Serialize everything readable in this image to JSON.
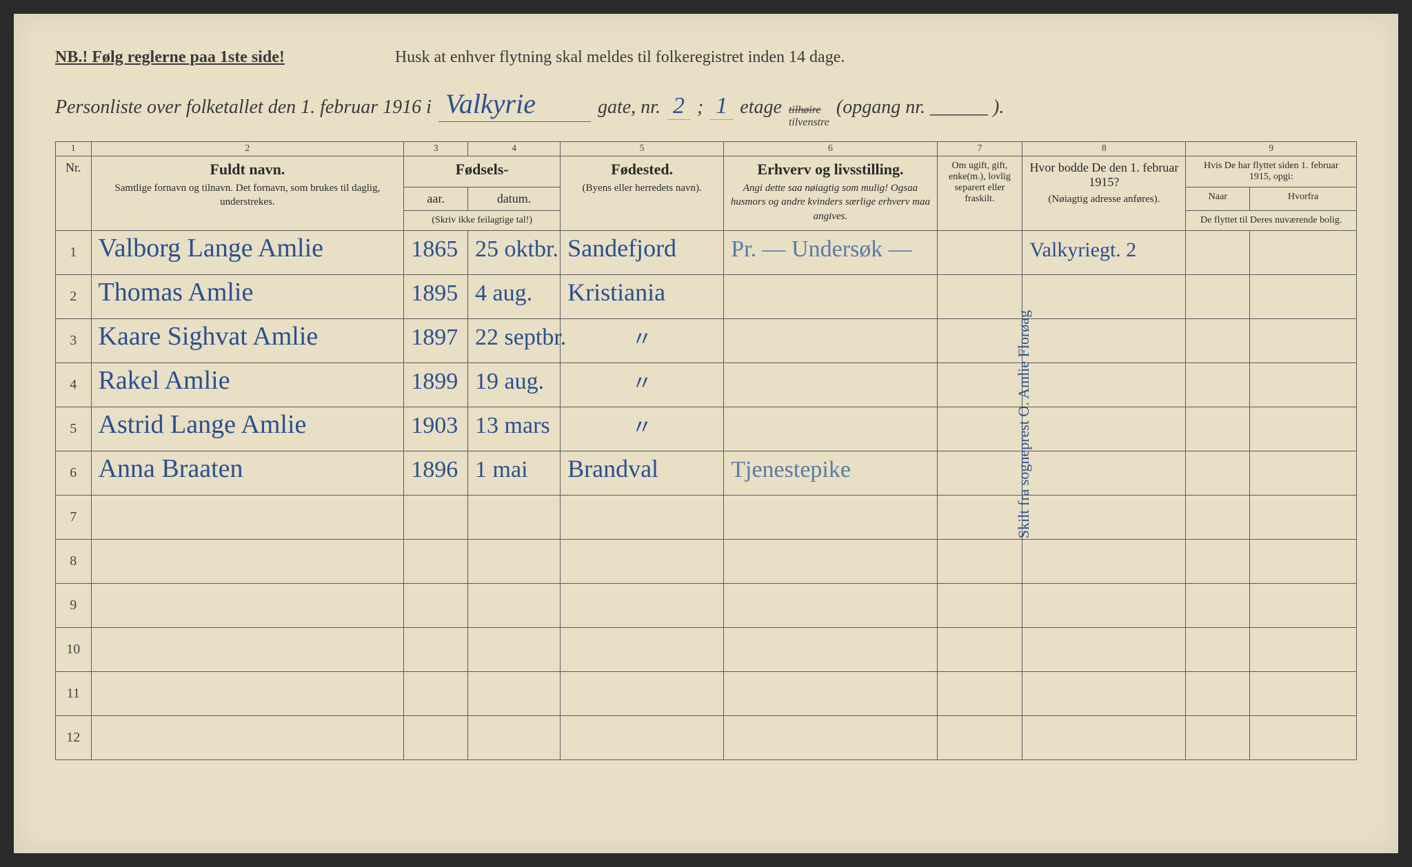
{
  "header": {
    "nb": "NB.! Følg reglerne paa 1ste side!",
    "reminder": "Husk at enhver flytning skal meldes til folkeregistret inden 14 dage.",
    "title_prefix": "Personliste over folketallet den 1. februar 1916 i",
    "street": "Valkyrie",
    "gate_label": "gate, nr.",
    "gate_nr": "2",
    "semi": ";",
    "etage_nr": "1",
    "etage_label": "etage",
    "side_strike": "tilhøire",
    "side_kept": "tilvenstre",
    "opgang": "(opgang nr. ______ )."
  },
  "colnums": [
    "1",
    "2",
    "3",
    "4",
    "5",
    "6",
    "7",
    "8",
    "9"
  ],
  "columns": {
    "nr": "Nr.",
    "name_main": "Fuldt navn.",
    "name_sub": "Samtlige fornavn og tilnavn. Det fornavn, som brukes til daglig, understrekes.",
    "birth_group": "Fødsels-",
    "year": "aar.",
    "date": "datum.",
    "birth_note": "(Skriv ikke feilagtige tal!)",
    "place_main": "Fødested.",
    "place_sub": "(Byens eller herredets navn).",
    "occ_main": "Erhverv og livsstilling.",
    "occ_sub": "Angi dette saa nøiagtig som mulig! Ogsaa husmors og andre kvinders særlige erhverv maa angives.",
    "marital": "Om ugift, gift, enke(m.), lovlig separert eller fraskilt.",
    "res1915_main": "Hvor bodde De den 1. februar 1915?",
    "res1915_sub": "(Nøiagtig adresse anføres).",
    "move_main": "Hvis De har flyttet siden 1. februar 1915, opgi:",
    "move_when": "Naar",
    "move_from": "Hvorfra",
    "move_sub": "De flyttet til Deres nuværende bolig."
  },
  "rows": [
    {
      "nr": "1",
      "name": "Valborg Lange Amlie",
      "year": "1865",
      "date": "25 oktbr.",
      "place": "Sandefjord",
      "occ": "Pr. — Undersøk —",
      "marital": "",
      "res1915": "Valkyriegt. 2",
      "when": "",
      "from": ""
    },
    {
      "nr": "2",
      "name": "Thomas Amlie",
      "year": "1895",
      "date": "4 aug.",
      "place": "Kristiania",
      "occ": "",
      "marital": "",
      "res1915": "",
      "when": "",
      "from": ""
    },
    {
      "nr": "3",
      "name": "Kaare Sighvat Amlie",
      "year": "1897",
      "date": "22 septbr.",
      "place": "\"",
      "occ": "",
      "marital": "",
      "res1915": "",
      "when": "",
      "from": ""
    },
    {
      "nr": "4",
      "name": "Rakel Amlie",
      "year": "1899",
      "date": "19 aug.",
      "place": "\"",
      "occ": "",
      "marital": "",
      "res1915": "",
      "when": "",
      "from": ""
    },
    {
      "nr": "5",
      "name": "Astrid Lange Amlie",
      "year": "1903",
      "date": "13 mars",
      "place": "\"",
      "occ": "",
      "marital": "",
      "res1915": "",
      "when": "",
      "from": ""
    },
    {
      "nr": "6",
      "name": "Anna Braaten",
      "year": "1896",
      "date": "1 mai",
      "place": "Brandval",
      "occ": "Tjenestepike",
      "marital": "",
      "res1915": "",
      "when": "",
      "from": ""
    },
    {
      "nr": "7",
      "name": "",
      "year": "",
      "date": "",
      "place": "",
      "occ": "",
      "marital": "",
      "res1915": "",
      "when": "",
      "from": ""
    },
    {
      "nr": "8",
      "name": "",
      "year": "",
      "date": "",
      "place": "",
      "occ": "",
      "marital": "",
      "res1915": "",
      "when": "",
      "from": ""
    },
    {
      "nr": "9",
      "name": "",
      "year": "",
      "date": "",
      "place": "",
      "occ": "",
      "marital": "",
      "res1915": "",
      "when": "",
      "from": ""
    },
    {
      "nr": "10",
      "name": "",
      "year": "",
      "date": "",
      "place": "",
      "occ": "",
      "marital": "",
      "res1915": "",
      "when": "",
      "from": ""
    },
    {
      "nr": "11",
      "name": "",
      "year": "",
      "date": "",
      "place": "",
      "occ": "",
      "marital": "",
      "res1915": "",
      "when": "",
      "from": ""
    },
    {
      "nr": "12",
      "name": "",
      "year": "",
      "date": "",
      "place": "",
      "occ": "",
      "marital": "",
      "res1915": "",
      "when": "",
      "from": ""
    }
  ],
  "vertical_note": "Skilt fra sogneprest O. Amlie Florøag",
  "colors": {
    "paper": "#e8dfc5",
    "ink_print": "#3a3a3a",
    "ink_hw": "#2b4f8f",
    "rule": "#5a5a5a"
  }
}
